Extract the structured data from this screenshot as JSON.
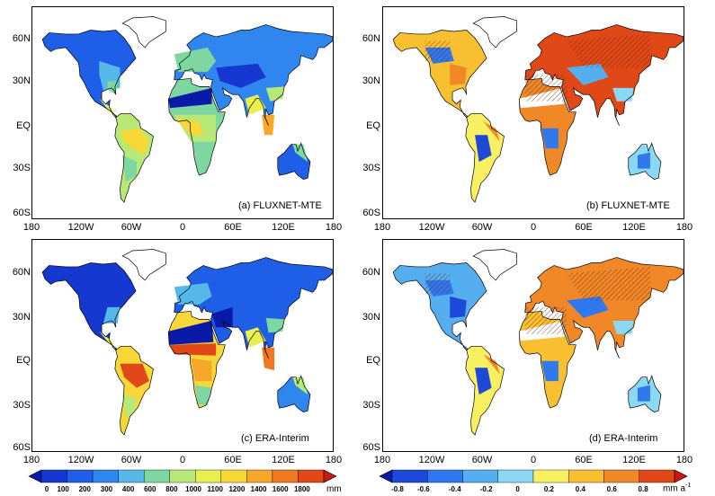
{
  "panels": [
    {
      "key": "a",
      "label": "(a)  FLUXNET-MTE",
      "kind": "mean"
    },
    {
      "key": "b",
      "label": "(b)  FLUXNET-MTE",
      "kind": "trend"
    },
    {
      "key": "c",
      "label": "(c)  ERA-Interim",
      "kind": "mean"
    },
    {
      "key": "d",
      "label": "(d)  ERA-Interim",
      "kind": "trend"
    }
  ],
  "axes": {
    "lat_ticks": [
      "60N",
      "30N",
      "EQ",
      "30S",
      "60S"
    ],
    "lon_ticks": [
      "180",
      "120W",
      "60W",
      "0",
      "60E",
      "120E",
      "180"
    ]
  },
  "colorbar_left": {
    "labels": [
      "0",
      "100",
      "200",
      "300",
      "400",
      "600",
      "800",
      "1000",
      "1100",
      "1200",
      "1400",
      "1600",
      "1800"
    ],
    "unit": "mm",
    "colors": [
      "#0a1aa8",
      "#1538d0",
      "#1f5ee6",
      "#2f86ee",
      "#55b8e8",
      "#7ed6a0",
      "#b8e878",
      "#e8f050",
      "#f8d838",
      "#f8a828",
      "#f07820",
      "#e04818",
      "#c81810"
    ]
  },
  "colorbar_right": {
    "labels": [
      "-0.8",
      "-0.6",
      "-0.4",
      "-0.2",
      "0",
      "0.2",
      "0.4",
      "0.6",
      "0.8"
    ],
    "unit": "mm a",
    "unit_sup": "-1",
    "colors": [
      "#0a1aa8",
      "#1d48d8",
      "#2f78ee",
      "#55aef0",
      "#8ad8f4",
      "#f8f060",
      "#f8c030",
      "#f08828",
      "#e04818",
      "#c81810"
    ]
  }
}
